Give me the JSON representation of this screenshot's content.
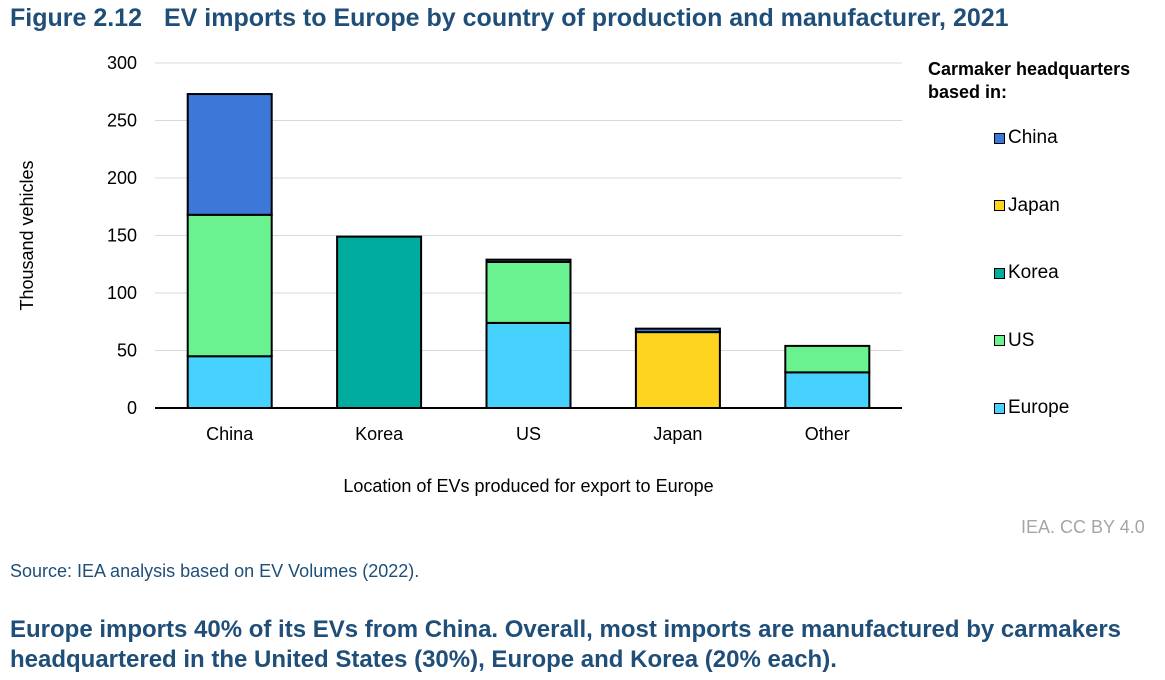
{
  "figure": {
    "number": "Figure 2.12",
    "title": "EV imports to Europe by country of production and manufacturer, 2021"
  },
  "legend": {
    "heading_line1": "Carmaker headquarters",
    "heading_line2": "based in:"
  },
  "credit": "IEA. CC BY 4.0",
  "source": "Source: IEA analysis based on EV Volumes (2022).",
  "summary": "Europe imports 40% of its EVs from China. Overall, most imports are manufactured by carmakers headquartered in the United States (30%), Europe and Korea (20% each).",
  "chart_data": {
    "type": "bar",
    "stacked": true,
    "categories": [
      "China",
      "Korea",
      "US",
      "Japan",
      "Other"
    ],
    "series": [
      {
        "name": "Europe",
        "color": "#47d1ff",
        "values": [
          45,
          0,
          74,
          0,
          31
        ]
      },
      {
        "name": "US",
        "color": "#6af290",
        "values": [
          123,
          0,
          53,
          0,
          23
        ]
      },
      {
        "name": "Korea",
        "color": "#00ac9e",
        "values": [
          0,
          149,
          0,
          0,
          0
        ]
      },
      {
        "name": "Japan",
        "color": "#ffd41f",
        "values": [
          0,
          0,
          0,
          66,
          0
        ]
      },
      {
        "name": "China",
        "color": "#3c78d8",
        "values": [
          105,
          0,
          2,
          3,
          0
        ]
      }
    ],
    "legend_order": [
      "China",
      "Japan",
      "Korea",
      "US",
      "Europe"
    ],
    "ylabel": "Thousand vehicles",
    "xlabel": "Location of EVs produced for export to Europe",
    "ylim": [
      0,
      300
    ],
    "yticks": [
      0,
      50,
      100,
      150,
      200,
      250,
      300
    ],
    "grid": true,
    "legend_position": "right"
  }
}
